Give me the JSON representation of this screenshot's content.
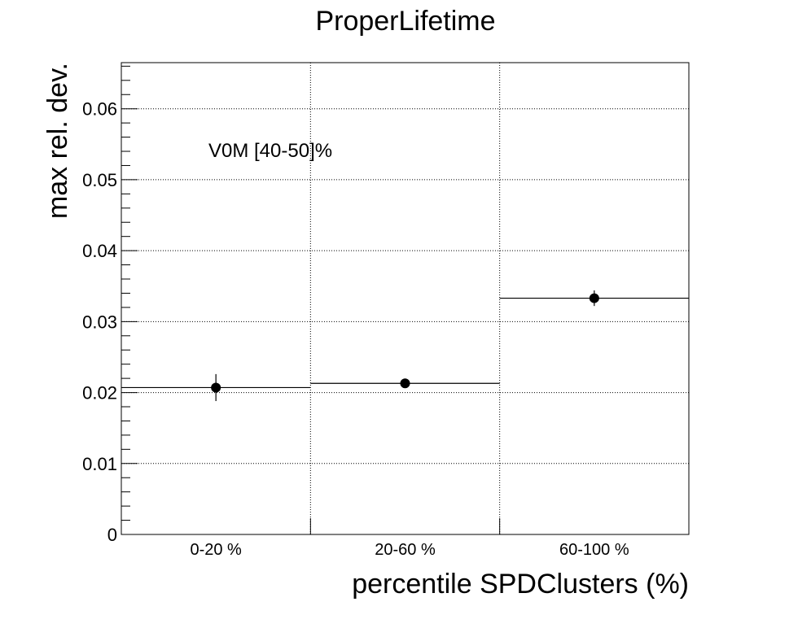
{
  "chart_data": {
    "type": "scatter",
    "title": "ProperLifetime",
    "xlabel": "percentile SPDClusters (%)",
    "ylabel": "max rel. dev.",
    "annotation": "V0M [40-50]%",
    "categories": [
      "0-20 %",
      "20-60 %",
      "60-100 %"
    ],
    "values": [
      0.0207,
      0.0213,
      0.0333
    ],
    "errors": [
      0.0019,
      0.0004,
      0.0011
    ],
    "ylim": [
      0,
      0.0665
    ],
    "yticks": [
      {
        "value": 0,
        "label": "0"
      },
      {
        "value": 0.01,
        "label": "0.01"
      },
      {
        "value": 0.02,
        "label": "0.02"
      },
      {
        "value": 0.03,
        "label": "0.03"
      },
      {
        "value": 0.04,
        "label": "0.04"
      },
      {
        "value": 0.05,
        "label": "0.05"
      },
      {
        "value": 0.06,
        "label": "0.06"
      }
    ],
    "grid": true,
    "marker_color": "#000000",
    "line_color": "#000000"
  }
}
